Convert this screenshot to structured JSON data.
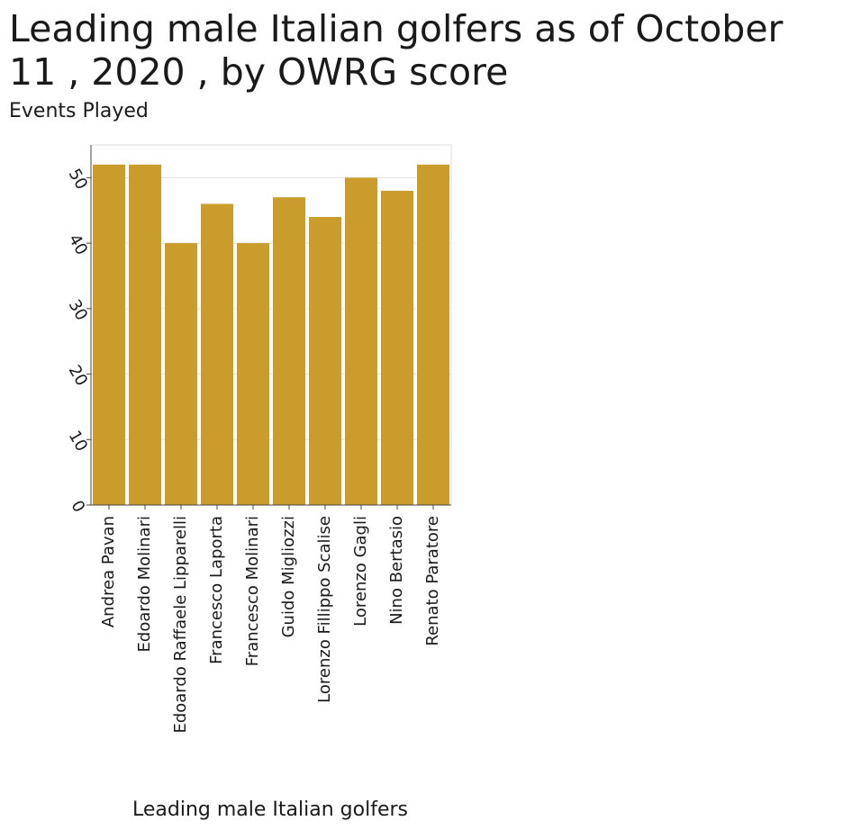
{
  "chart_data": {
    "type": "bar",
    "title": "Leading male Italian golfers as of October 11 , 2020 , by OWRG score",
    "ylabel": "Events Played",
    "xlabel": "Leading male Italian golfers",
    "categories": [
      "Andrea Pavan",
      "Edoardo Molinari",
      "Edoardo Raffaele Lipparelli",
      "Francesco Laporta",
      "Francesco Molinari",
      "Guido Migliozzi",
      "Lorenzo Fillippo Scalise",
      "Lorenzo Gagli",
      "Nino Bertasio",
      "Renato Paratore"
    ],
    "values": [
      52,
      52,
      40,
      46,
      40,
      47,
      44,
      50,
      48,
      52
    ],
    "ylim": [
      0,
      55
    ],
    "yticks": [
      0,
      10,
      20,
      30,
      40,
      50
    ],
    "grid": true,
    "bar_color": "#c99c2c"
  }
}
